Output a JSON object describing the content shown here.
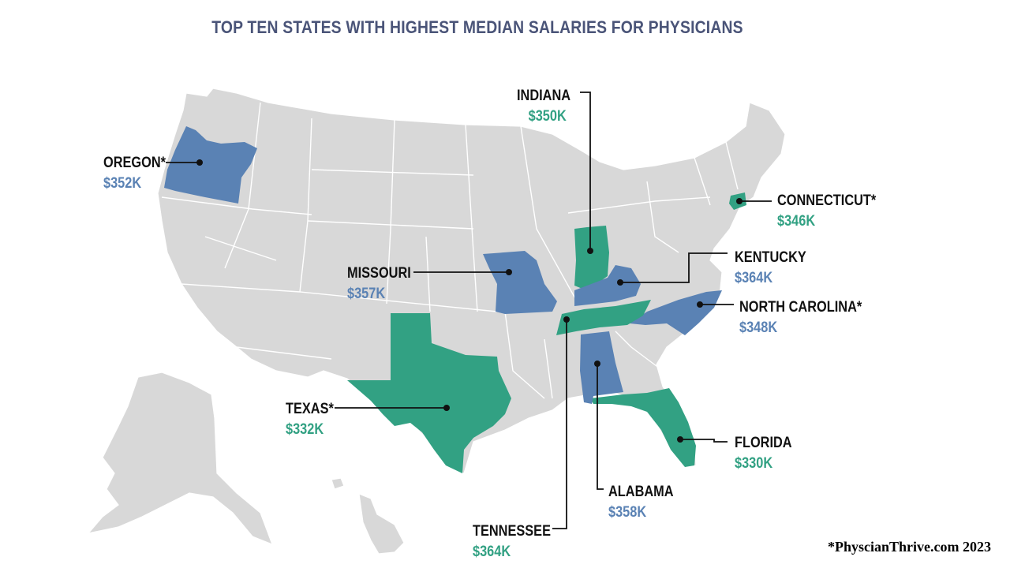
{
  "title": "TOP TEN STATES WITH HIGHEST MEDIAN SALARIES FOR PHYSICIANS",
  "credit": "*PhyscianThrive.com 2023",
  "colors": {
    "blue": "#5a82b4",
    "green": "#32a183",
    "land": "#d8d8d8",
    "title": "#4a5478"
  },
  "states": [
    {
      "name": "OREGON*",
      "value": "$352K",
      "color": "blue"
    },
    {
      "name": "INDIANA",
      "value": "$350K",
      "color": "green"
    },
    {
      "name": "CONNECTICUT*",
      "value": "$346K",
      "color": "green"
    },
    {
      "name": "KENTUCKY",
      "value": "$364K",
      "color": "blue"
    },
    {
      "name": "MISSOURI",
      "value": "$357K",
      "color": "blue"
    },
    {
      "name": "NORTH CAROLINA*",
      "value": "$348K",
      "color": "blue"
    },
    {
      "name": "TEXAS*",
      "value": "$332K",
      "color": "green"
    },
    {
      "name": "FLORIDA",
      "value": "$330K",
      "color": "green"
    },
    {
      "name": "ALABAMA",
      "value": "$358K",
      "color": "blue"
    },
    {
      "name": "TENNESSEE",
      "value": "$364K",
      "color": "green"
    }
  ]
}
